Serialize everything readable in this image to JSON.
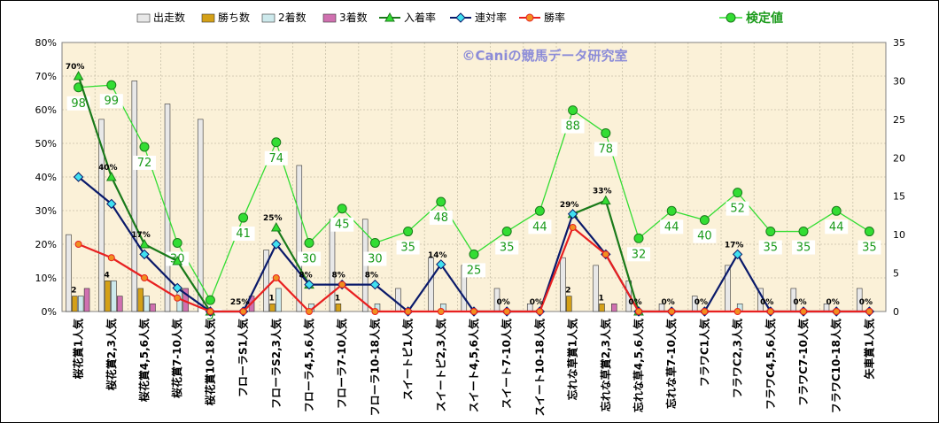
{
  "chart_data": {
    "type": "bar",
    "watermark": "©Caniの競馬データ研究室",
    "categories": [
      "桜花賞1人気",
      "桜花賞2,3人気",
      "桜花賞4,5,6人気",
      "桜花賞7-10人気",
      "桜花賞10-18人気",
      "フローラS1人気",
      "フローラS2,3人気",
      "フローラ4,5,6人気",
      "フローラ7-10人気",
      "フローラ10-18人気",
      "スイートピ1人気",
      "スイートピ2,3人気",
      "スイート4,5,6人気",
      "スイート7-10人気",
      "スイート10-18人気",
      "忘れな草賞1人気",
      "忘れな草賞2,3人気",
      "忘れな草4,5,6人気",
      "忘れな草7-10人気",
      "フラワC1人気",
      "フラワC2,3人気",
      "フラワC4,5,6人気",
      "フラワC7-10人気",
      "フラワC10-18人気",
      "矢車賞1人気"
    ],
    "left_axis": {
      "min": 0,
      "max": 80,
      "step": 10,
      "unit": "%"
    },
    "right_axis": {
      "min": 0,
      "max": 35,
      "step": 5
    },
    "legend": [
      "出走数",
      "勝ち数",
      "2着数",
      "3着数",
      "入着率",
      "連対率",
      "勝率"
    ],
    "legend2": "検定値",
    "bars": [
      {
        "name": "出走数",
        "color": "#e8e8e8",
        "values": [
          10,
          25,
          30,
          27,
          25,
          0,
          8,
          19,
          12,
          12,
          3,
          7,
          6,
          3,
          1,
          7,
          6,
          4,
          1,
          2,
          6,
          3,
          3,
          1,
          3
        ]
      },
      {
        "name": "勝ち数",
        "color": "#d4a017",
        "values": [
          2,
          4,
          3,
          0,
          0,
          0,
          1,
          0,
          1,
          0,
          0,
          0,
          0,
          0,
          0,
          2,
          1,
          0,
          0,
          0,
          0,
          0,
          0,
          0,
          0
        ]
      },
      {
        "name": "2着数",
        "color": "#cde9ec",
        "values": [
          2,
          4,
          2,
          3,
          0,
          0,
          3,
          1,
          0,
          1,
          0,
          1,
          0,
          0,
          0,
          0,
          0,
          0,
          0,
          0,
          1,
          0,
          0,
          0,
          0
        ]
      },
      {
        "name": "3着数",
        "color": "#d070b0",
        "values": [
          3,
          2,
          1,
          3,
          0,
          2,
          0,
          0,
          0,
          0,
          0,
          0,
          0,
          0,
          0,
          0,
          1,
          0,
          0,
          0,
          0,
          0,
          0,
          0,
          0
        ]
      }
    ],
    "lines": [
      {
        "name": "入着率",
        "color": "#1a7a1a",
        "values": [
          70,
          40,
          20,
          15,
          0,
          null,
          25,
          8,
          null,
          null,
          null,
          null,
          null,
          null,
          null,
          29,
          33,
          0,
          null,
          null,
          null,
          null,
          null,
          null,
          null
        ]
      },
      {
        "name": "連対率",
        "color": "#0a1a6a",
        "values": [
          40,
          32,
          17,
          7,
          0,
          0,
          20,
          8,
          8,
          8,
          0,
          14,
          0,
          0,
          0,
          29,
          17,
          0,
          0,
          0,
          17,
          0,
          0,
          0,
          0
        ]
      },
      {
        "name": "勝率",
        "color": "#e82020",
        "values": [
          20,
          16,
          10,
          4,
          0,
          0,
          10,
          0,
          8,
          0,
          0,
          0,
          0,
          0,
          0,
          25,
          17,
          0,
          0,
          0,
          0,
          0,
          0,
          0,
          0
        ]
      }
    ],
    "kentei": {
      "name": "検定値",
      "color": "#33dd33",
      "values": [
        98,
        99,
        72,
        30,
        5,
        41,
        74,
        30,
        45,
        30,
        35,
        48,
        25,
        35,
        44,
        88,
        78,
        32,
        44,
        40,
        52,
        35,
        35,
        44,
        35
      ]
    },
    "top_labels": [
      "70%",
      "40%",
      "17%",
      "",
      "",
      "25%",
      "25%",
      "8%",
      "8%",
      "8%",
      "",
      "14%",
      "",
      "0%",
      "0%",
      "29%",
      "33%",
      "0%",
      "0%",
      "0%",
      "17%",
      "0%",
      "0%",
      "0%",
      "0%"
    ],
    "win_labels": [
      "2",
      "4",
      "",
      "",
      "",
      "",
      "1",
      "",
      "1",
      "",
      "",
      "",
      "",
      "",
      "",
      "2",
      "1",
      "",
      "",
      "",
      "",
      "",
      "",
      "",
      ""
    ]
  }
}
